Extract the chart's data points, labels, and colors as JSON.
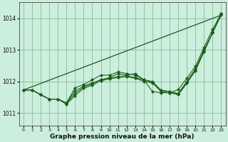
{
  "background_color": "#cceedd",
  "grid_color": "#88bb99",
  "line_color": "#1a5c1a",
  "xlabel": "Graphe pression niveau de la mer (hPa)",
  "xlabel_fontsize": 6.5,
  "ylim": [
    1010.6,
    1014.5
  ],
  "xlim": [
    -0.5,
    23.5
  ],
  "yticks": [
    1011,
    1012,
    1013,
    1014
  ],
  "xticks": [
    0,
    1,
    2,
    3,
    4,
    5,
    6,
    7,
    8,
    9,
    10,
    11,
    12,
    13,
    14,
    15,
    16,
    17,
    18,
    19,
    20,
    21,
    22,
    23
  ],
  "series_no_marker": [
    [
      0,
      1011.73
    ],
    [
      23,
      1014.1
    ]
  ],
  "series_with_markers": [
    {
      "x": [
        0,
        1,
        2,
        3,
        4,
        5,
        6,
        7,
        8,
        9,
        10,
        11,
        12,
        13,
        14,
        15,
        16,
        17,
        18,
        19,
        20,
        21,
        22,
        23
      ],
      "y": [
        1011.73,
        1011.73,
        1011.58,
        1011.44,
        1011.44,
        1011.32,
        1011.7,
        1011.85,
        1011.95,
        1012.05,
        1012.12,
        1012.25,
        1012.2,
        1012.25,
        1012.05,
        1012.0,
        1011.72,
        1011.68,
        1011.62,
        1012.0,
        1012.4,
        1013.0,
        1013.55,
        1014.15
      ]
    },
    {
      "x": [
        0,
        1,
        2,
        3,
        4,
        5,
        6,
        7,
        8,
        9,
        10,
        11,
        12,
        13,
        14,
        15,
        16,
        17,
        18,
        19,
        20,
        21,
        22,
        23
      ],
      "y": [
        1011.73,
        1011.73,
        1011.58,
        1011.44,
        1011.44,
        1011.32,
        1011.8,
        1011.9,
        1012.05,
        1012.2,
        1012.2,
        1012.3,
        1012.25,
        1012.2,
        1012.05,
        1011.68,
        1011.64,
        1011.64,
        1011.74,
        1012.1,
        1012.48,
        1013.08,
        1013.65,
        1014.15
      ]
    },
    {
      "x": [
        0,
        1,
        2,
        3,
        4,
        5,
        6,
        7,
        8,
        9,
        10,
        11,
        12,
        13,
        14,
        15,
        16,
        17,
        18,
        19,
        20,
        21,
        22,
        23
      ],
      "y": [
        1011.73,
        1011.73,
        1011.58,
        1011.44,
        1011.44,
        1011.28,
        1011.55,
        1011.78,
        1011.88,
        1012.02,
        1012.08,
        1012.12,
        1012.15,
        1012.1,
        1012.0,
        1011.95,
        1011.68,
        1011.64,
        1011.58,
        1011.94,
        1012.34,
        1012.94,
        1013.54,
        1014.1
      ]
    },
    {
      "x": [
        0,
        1,
        2,
        3,
        4,
        5,
        6,
        7,
        8,
        9,
        10,
        11,
        12,
        13,
        14,
        15,
        16,
        17,
        18,
        19,
        20,
        21,
        22,
        23
      ],
      "y": [
        1011.73,
        1011.73,
        1011.58,
        1011.44,
        1011.44,
        1011.3,
        1011.62,
        1011.82,
        1011.92,
        1012.06,
        1012.1,
        1012.16,
        1012.18,
        1012.12,
        1012.04,
        1011.98,
        1011.72,
        1011.68,
        1011.6,
        1011.96,
        1012.36,
        1012.96,
        1013.56,
        1014.12
      ]
    }
  ]
}
